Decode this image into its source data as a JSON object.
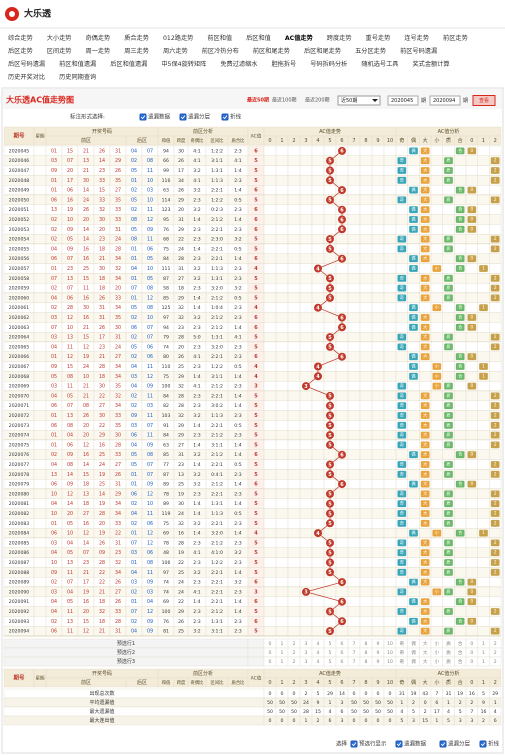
{
  "header": {
    "logo": "大乐透"
  },
  "nav": [
    [
      "综合走势",
      "大小走势",
      "奇偶走势",
      "质合走势",
      "012路走势",
      "前区和值",
      "后区和值",
      "AC值走势",
      "跨度走势",
      "重号走势",
      "连号走势",
      "前区走势"
    ],
    [
      "后区走势",
      "区间走势",
      "周一走势",
      "周三走势",
      "周六走势",
      "前区冷热分布",
      "前区和尾走势",
      "后区和尾走势",
      "五分区走势",
      "前区号码遗漏"
    ],
    [
      "后区号码遗漏",
      "前区和值遗漏",
      "后区和值遗漏",
      "中5保4旋转矩阵",
      "免费过滤缩水",
      "胆拖拆号",
      "号码拆码分析",
      "随机选号工具",
      "奖式金额计算"
    ],
    [
      "历史开奖对比",
      "历史同期查询"
    ]
  ],
  "panel": {
    "title": "大乐透AC值走势图",
    "recent": [
      "最近50期",
      "最近100期",
      "最近200期"
    ],
    "select": "近50期",
    "from": "2020045",
    "from_unit": "期",
    "to": "2020094",
    "to_unit": "期",
    "button": "查看"
  },
  "options": {
    "label": "标注形式选择:",
    "items": [
      "遗漏数据",
      "遗漏分层",
      "折线"
    ]
  },
  "table": {
    "columns": {
      "issue": "期号",
      "week": "星期",
      "draw": "开奖号码",
      "front": "前区",
      "back": "后区",
      "analysis": "前区分析",
      "metrics": [
        "和值",
        "跨度",
        "奇偶比",
        "区间比",
        "质合比"
      ],
      "ac": "AC值",
      "trend": "AC值走势",
      "trend_cols": [
        0,
        1,
        2,
        3,
        4,
        5,
        6,
        7,
        8,
        9,
        10
      ],
      "ac_analysis": "AC值分析",
      "ac_cols": [
        "奇",
        "偶",
        "大",
        "小",
        "质",
        "合",
        "0",
        "1",
        "2"
      ]
    },
    "rows": [
      [
        "2020045",
        [
          "01",
          "15",
          "21",
          "26",
          "31"
        ],
        [
          "04",
          "07"
        ],
        94,
        30,
        "4:1",
        "1:2:2",
        "2:3",
        6
      ],
      [
        "2020046",
        [
          "03",
          "07",
          "13",
          "14",
          "29"
        ],
        [
          "02",
          "08"
        ],
        66,
        26,
        "4:1",
        "3:1:1",
        "4:1",
        5
      ],
      [
        "2020047",
        [
          "09",
          "20",
          "21",
          "23",
          "26"
        ],
        [
          "05",
          "11"
        ],
        99,
        17,
        "3:2",
        "1:3:1",
        "1:4",
        5
      ],
      [
        "2020048",
        [
          "01",
          "17",
          "30",
          "33",
          "35"
        ],
        [
          "01",
          "10"
        ],
        116,
        34,
        "4:1",
        "1:1:3",
        "2:3",
        5
      ],
      [
        "2020049",
        [
          "01",
          "06",
          "14",
          "15",
          "27"
        ],
        [
          "02",
          "03"
        ],
        63,
        26,
        "3:2",
        "2:2:1",
        "1:4",
        6
      ],
      [
        "2020050",
        [
          "06",
          "16",
          "24",
          "33",
          "35"
        ],
        [
          "05",
          "10"
        ],
        114,
        29,
        "2:3",
        "1:2:2",
        "0:5",
        5
      ],
      [
        "2020051",
        [
          "13",
          "19",
          "26",
          "32",
          "33"
        ],
        [
          "02",
          "11"
        ],
        123,
        20,
        "3:2",
        "0:2:3",
        "2:3",
        6
      ],
      [
        "2020052",
        [
          "02",
          "10",
          "20",
          "30",
          "33"
        ],
        [
          "08",
          "12"
        ],
        95,
        31,
        "1:4",
        "2:1:2",
        "1:4",
        6
      ],
      [
        "2020053",
        [
          "02",
          "09",
          "14",
          "20",
          "31"
        ],
        [
          "05",
          "09"
        ],
        76,
        29,
        "2:3",
        "2:2:1",
        "2:3",
        6
      ],
      [
        "2020054",
        [
          "02",
          "05",
          "14",
          "23",
          "24"
        ],
        [
          "08",
          "11"
        ],
        68,
        22,
        "2:3",
        "2:3:0",
        "3:2",
        5
      ],
      [
        "2020055",
        [
          "04",
          "09",
          "16",
          "18",
          "28"
        ],
        [
          "01",
          "06"
        ],
        75,
        24,
        "1:4",
        "2:2:1",
        "0:5",
        5
      ],
      [
        "2020056",
        [
          "06",
          "07",
          "16",
          "21",
          "34"
        ],
        [
          "01",
          "05"
        ],
        84,
        28,
        "2:3",
        "2:2:1",
        "1:4",
        6
      ],
      [
        "2020057",
        [
          "01",
          "23",
          "25",
          "30",
          "32"
        ],
        [
          "04",
          "10"
        ],
        111,
        31,
        "3:2",
        "1:1:3",
        "2:3",
        4
      ],
      [
        "2020058",
        [
          "07",
          "13",
          "15",
          "18",
          "34"
        ],
        [
          "01",
          "05"
        ],
        87,
        27,
        "3:2",
        "1:3:1",
        "2:3",
        5
      ],
      [
        "2020059",
        [
          "02",
          "07",
          "11",
          "18",
          "20"
        ],
        [
          "07",
          "08"
        ],
        58,
        18,
        "2:3",
        "3:2:0",
        "3:2",
        5
      ],
      [
        "2020060",
        [
          "04",
          "06",
          "16",
          "26",
          "33"
        ],
        [
          "01",
          "12"
        ],
        85,
        29,
        "1:4",
        "2:1:2",
        "0:5",
        5
      ],
      [
        "2020061",
        [
          "02",
          "28",
          "30",
          "31",
          "34"
        ],
        [
          "05",
          "08"
        ],
        125,
        32,
        "1:4",
        "1:0:4",
        "2:3",
        4
      ],
      [
        "2020062",
        [
          "03",
          "12",
          "16",
          "31",
          "35"
        ],
        [
          "02",
          "10"
        ],
        97,
        32,
        "3:2",
        "2:1:2",
        "2:3",
        6
      ],
      [
        "2020063",
        [
          "07",
          "10",
          "21",
          "26",
          "30"
        ],
        [
          "06",
          "07"
        ],
        94,
        23,
        "2:3",
        "2:1:2",
        "1:4",
        6
      ],
      [
        "2020064",
        [
          "03",
          "13",
          "15",
          "17",
          "31"
        ],
        [
          "02",
          "07"
        ],
        79,
        28,
        "5:0",
        "1:3:1",
        "4:1",
        5
      ],
      [
        "2020065",
        [
          "04",
          "11",
          "12",
          "23",
          "24"
        ],
        [
          "05",
          "06"
        ],
        74,
        20,
        "2:3",
        "3:2:0",
        "2:3",
        5
      ],
      [
        "2020066",
        [
          "01",
          "12",
          "19",
          "21",
          "27"
        ],
        [
          "02",
          "06"
        ],
        80,
        26,
        "4:1",
        "2:2:1",
        "2:3",
        6
      ],
      [
        "2020067",
        [
          "09",
          "15",
          "24",
          "28",
          "34"
        ],
        [
          "04",
          "11"
        ],
        110,
        25,
        "2:3",
        "1:2:2",
        "0:5",
        4
      ],
      [
        "2020068",
        [
          "05",
          "08",
          "10",
          "18",
          "34"
        ],
        [
          "03",
          "12"
        ],
        75,
        29,
        "1:4",
        "3:1:1",
        "1:4",
        4
      ],
      [
        "2020069",
        [
          "03",
          "11",
          "21",
          "30",
          "35"
        ],
        [
          "04",
          "09"
        ],
        100,
        32,
        "4:1",
        "2:1:2",
        "2:3",
        3
      ],
      [
        "2020070",
        [
          "04",
          "05",
          "21",
          "22",
          "32"
        ],
        [
          "02",
          "11"
        ],
        84,
        28,
        "2:3",
        "2:2:1",
        "1:4",
        5
      ],
      [
        "2020071",
        [
          "06",
          "07",
          "08",
          "27",
          "34"
        ],
        [
          "02",
          "03"
        ],
        82,
        28,
        "2:3",
        "3:0:2",
        "1:4",
        5
      ],
      [
        "2020072",
        [
          "01",
          "13",
          "26",
          "30",
          "33"
        ],
        [
          "09",
          "11"
        ],
        103,
        32,
        "3:2",
        "1:1:3",
        "2:3",
        5
      ],
      [
        "2020073",
        [
          "06",
          "08",
          "20",
          "22",
          "35"
        ],
        [
          "03",
          "07"
        ],
        91,
        29,
        "1:4",
        "2:2:1",
        "0:5",
        5
      ],
      [
        "2020074",
        [
          "01",
          "04",
          "20",
          "29",
          "30"
        ],
        [
          "06",
          "11"
        ],
        84,
        29,
        "2:3",
        "2:1:2",
        "2:3",
        5
      ],
      [
        "2020075",
        [
          "01",
          "06",
          "12",
          "16",
          "28"
        ],
        [
          "04",
          "09"
        ],
        63,
        27,
        "1:4",
        "3:1:1",
        "1:4",
        5
      ],
      [
        "2020076",
        [
          "02",
          "09",
          "16",
          "25",
          "33"
        ],
        [
          "05",
          "08"
        ],
        85,
        31,
        "3:2",
        "2:1:2",
        "1:4",
        6
      ],
      [
        "2020077",
        [
          "04",
          "08",
          "14",
          "24",
          "27"
        ],
        [
          "05",
          "07"
        ],
        77,
        23,
        "1:4",
        "2:2:1",
        "0:5",
        5
      ],
      [
        "2020078",
        [
          "13",
          "14",
          "15",
          "19",
          "26"
        ],
        [
          "01",
          "07"
        ],
        87,
        13,
        "3:2",
        "0:4:1",
        "2:3",
        5
      ],
      [
        "2020079",
        [
          "06",
          "09",
          "18",
          "25",
          "31"
        ],
        [
          "01",
          "09"
        ],
        89,
        25,
        "3:2",
        "2:1:2",
        "1:4",
        6
      ],
      [
        "2020080",
        [
          "10",
          "12",
          "13",
          "14",
          "29"
        ],
        [
          "06",
          "12"
        ],
        78,
        19,
        "2:3",
        "2:2:1",
        "2:3",
        5
      ],
      [
        "2020081",
        [
          "04",
          "14",
          "18",
          "19",
          "34"
        ],
        [
          "02",
          "10"
        ],
        89,
        30,
        "1:4",
        "1:3:1",
        "1:4",
        5
      ],
      [
        "2020082",
        [
          "10",
          "20",
          "27",
          "28",
          "34"
        ],
        [
          "04",
          "11"
        ],
        119,
        24,
        "1:4",
        "1:1:3",
        "0:5",
        5
      ],
      [
        "2020083",
        [
          "01",
          "05",
          "16",
          "20",
          "33"
        ],
        [
          "02",
          "06"
        ],
        75,
        32,
        "3:2",
        "2:2:1",
        "2:3",
        5
      ],
      [
        "2020084",
        [
          "06",
          "10",
          "12",
          "19",
          "22"
        ],
        [
          "01",
          "12"
        ],
        69,
        16,
        "1:4",
        "3:2:0",
        "1:4",
        4
      ],
      [
        "2020085",
        [
          "03",
          "04",
          "14",
          "26",
          "31"
        ],
        [
          "07",
          "12"
        ],
        78,
        28,
        "2:3",
        "2:1:2",
        "2:3",
        5
      ],
      [
        "2020086",
        [
          "04",
          "05",
          "07",
          "09",
          "23"
        ],
        [
          "03",
          "06"
        ],
        48,
        19,
        "4:1",
        "4:1:0",
        "3:2",
        5
      ],
      [
        "2020087",
        [
          "10",
          "13",
          "23",
          "28",
          "32"
        ],
        [
          "01",
          "08"
        ],
        106,
        22,
        "2:3",
        "1:2:2",
        "2:3",
        5
      ],
      [
        "2020088",
        [
          "09",
          "11",
          "21",
          "22",
          "34"
        ],
        [
          "04",
          "11"
        ],
        97,
        25,
        "3:2",
        "2:2:1",
        "1:4",
        5
      ],
      [
        "2020089",
        [
          "02",
          "07",
          "17",
          "22",
          "26"
        ],
        [
          "03",
          "09"
        ],
        74,
        24,
        "2:3",
        "2:2:1",
        "3:2",
        6
      ],
      [
        "2020090",
        [
          "03",
          "04",
          "19",
          "21",
          "27"
        ],
        [
          "02",
          "03"
        ],
        74,
        24,
        "4:1",
        "2:2:1",
        "2:3",
        3
      ],
      [
        "2020091",
        [
          "04",
          "05",
          "16",
          "18",
          "26"
        ],
        [
          "01",
          "04"
        ],
        69,
        22,
        "1:4",
        "2:2:1",
        "1:4",
        6
      ],
      [
        "2020092",
        [
          "04",
          "11",
          "20",
          "32",
          "33"
        ],
        [
          "07",
          "12"
        ],
        100,
        29,
        "2:3",
        "2:1:2",
        "1:4",
        5
      ],
      [
        "2020093",
        [
          "02",
          "13",
          "15",
          "18",
          "28"
        ],
        [
          "02",
          "09"
        ],
        76,
        26,
        "2:3",
        "1:3:1",
        "2:3",
        6
      ],
      [
        "2020094",
        [
          "06",
          "11",
          "12",
          "21",
          "31"
        ],
        [
          "04",
          "09"
        ],
        81,
        25,
        "3:2",
        "3:1:1",
        "2:3",
        5
      ]
    ],
    "preselect": [
      "预选行1",
      "预选行2",
      "预选行3"
    ],
    "stats": [
      {
        "label": "出现总次数",
        "trend": [
          0,
          0,
          0,
          2,
          5,
          29,
          14,
          0,
          0,
          0,
          0
        ],
        "analysis": [
          31,
          19,
          43,
          7,
          31,
          19,
          16,
          5,
          29
        ]
      },
      {
        "label": "平均遗漏值",
        "trend": [
          50,
          50,
          50,
          24,
          9,
          1,
          3,
          50,
          50,
          50,
          50
        ],
        "analysis": [
          1,
          2,
          0,
          6,
          1,
          2,
          2,
          9,
          1
        ]
      },
      {
        "label": "最大遗漏值",
        "trend": [
          50,
          50,
          50,
          28,
          15,
          4,
          6,
          50,
          50,
          50,
          50
        ],
        "analysis": [
          4,
          5,
          2,
          17,
          4,
          5,
          7,
          16,
          4
        ]
      },
      {
        "label": "最大连出值",
        "trend": [
          0,
          0,
          0,
          1,
          2,
          6,
          3,
          0,
          0,
          0,
          0
        ],
        "analysis": [
          5,
          3,
          15,
          1,
          5,
          3,
          3,
          2,
          6
        ]
      }
    ]
  },
  "footer": {
    "label": "选择",
    "items": [
      "预选行显示",
      "遗漏数据",
      "遗漏分层",
      "折线"
    ]
  }
}
